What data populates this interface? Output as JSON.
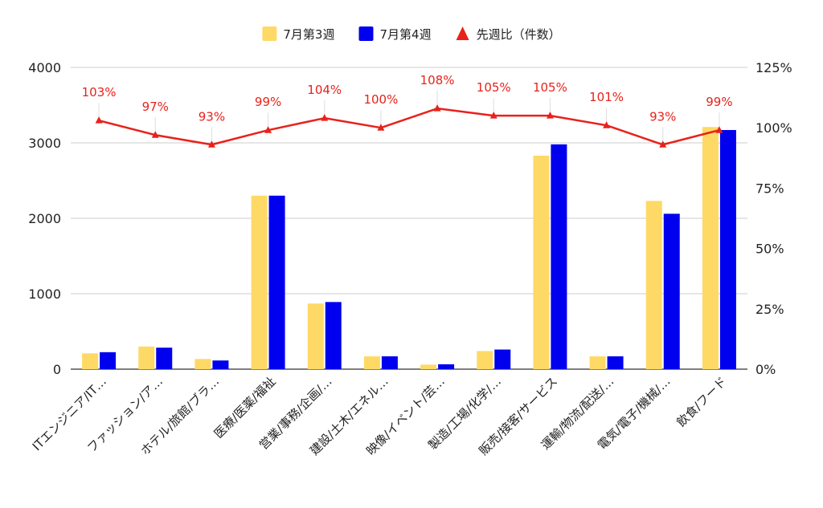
{
  "chart_data": {
    "type": "bar",
    "categories": [
      "ITエンジニア/IT…",
      "ファッション/ア…",
      "ホテル/旅館/ブラ…",
      "医療/医薬/福祉",
      "営業/事務/企画/…",
      "建設/土木/エネル…",
      "映像/イベント/芸…",
      "製造/工場/化学/…",
      "販売/接客/サービス",
      "運輸/物流/配送/…",
      "電気/電子/機械/…",
      "飲食/フード"
    ],
    "series": [
      {
        "name": "7月第3週",
        "type": "bar",
        "axis": "left",
        "color": "#ffd966",
        "values": [
          210,
          300,
          135,
          2300,
          870,
          170,
          60,
          240,
          2830,
          170,
          2230,
          3210
        ]
      },
      {
        "name": "7月第4週",
        "type": "bar",
        "axis": "left",
        "color": "#0000ee",
        "values": [
          225,
          285,
          115,
          2300,
          890,
          170,
          65,
          260,
          2980,
          170,
          2060,
          3170
        ]
      },
      {
        "name": "先週比（件数）",
        "type": "line",
        "axis": "right",
        "color": "#e8221b",
        "marker": "triangle",
        "values": [
          103,
          97,
          93,
          99,
          104,
          100,
          108,
          105,
          105,
          101,
          93,
          99
        ],
        "labels": [
          "103%",
          "97%",
          "93%",
          "99%",
          "104%",
          "100%",
          "108%",
          "105%",
          "105%",
          "101%",
          "93%",
          "99%"
        ]
      }
    ],
    "y_left": {
      "min": 0,
      "max": 4000,
      "ticks": [
        0,
        1000,
        2000,
        3000,
        4000
      ],
      "tick_labels": [
        "0",
        "1000",
        "2000",
        "3000",
        "4000"
      ]
    },
    "y_right": {
      "min": 0,
      "max": 125,
      "ticks": [
        0,
        25,
        50,
        75,
        100,
        125
      ],
      "tick_labels": [
        "0%",
        "25%",
        "50%",
        "75%",
        "100%",
        "125%"
      ]
    },
    "grid": true,
    "legend_position": "top-center"
  }
}
